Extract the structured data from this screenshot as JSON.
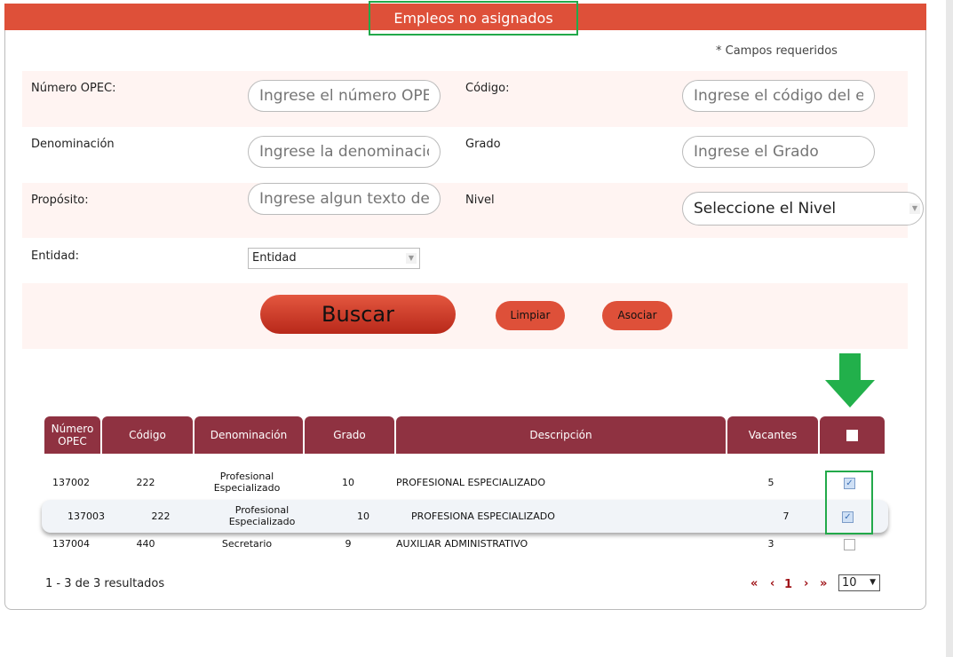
{
  "title": "Empleos no asignados",
  "required_note": "* Campos requeridos",
  "form": {
    "numero_opec": {
      "label": "Número OPEC:",
      "placeholder": "Ingrese el número OPEC"
    },
    "codigo": {
      "label": "Código:",
      "placeholder": "Ingrese el código del empleo"
    },
    "denominacion": {
      "label": "Denominación",
      "placeholder": "Ingrese la denominación"
    },
    "grado": {
      "label": "Grado",
      "placeholder": "Ingrese el Grado"
    },
    "proposito": {
      "label": "Propósito:",
      "placeholder": "Ingrese algun texto del propósito"
    },
    "nivel": {
      "label": "Nivel",
      "value": "Seleccione el Nivel"
    },
    "entidad": {
      "label": "Entidad:",
      "value": "Entidad"
    }
  },
  "buttons": {
    "buscar": "Buscar",
    "limpiar": "Limpiar",
    "asociar": "Asociar"
  },
  "table": {
    "headers": [
      "Número OPEC",
      "Código",
      "Denominación",
      "Grado",
      "Descripción",
      "Vacantes"
    ],
    "rows": [
      {
        "opec": "137002",
        "codigo": "222",
        "denominacion": "Profesional Especializado",
        "grado": "10",
        "descripcion": "PROFESIONAL ESPECIALIZADO",
        "vacantes": "5",
        "checked": true
      },
      {
        "opec": "137003",
        "codigo": "222",
        "denominacion": "Profesional Especializado",
        "grado": "10",
        "descripcion": "PROFESIONA ESPECIALIZADO",
        "vacantes": "7",
        "checked": true
      },
      {
        "opec": "137004",
        "codigo": "440",
        "denominacion": "Secretario",
        "grado": "9",
        "descripcion": "AUXILIAR ADMINISTRATIVO",
        "vacantes": "3",
        "checked": false
      }
    ]
  },
  "footer": {
    "results": "1 - 3 de 3 resultados",
    "first": "«",
    "prev": "‹",
    "page": "1",
    "next": "›",
    "last": "»",
    "page_size": "10"
  },
  "colors": {
    "header": "#de5039",
    "table_header": "#8f3241",
    "highlight": "#22a94a"
  }
}
